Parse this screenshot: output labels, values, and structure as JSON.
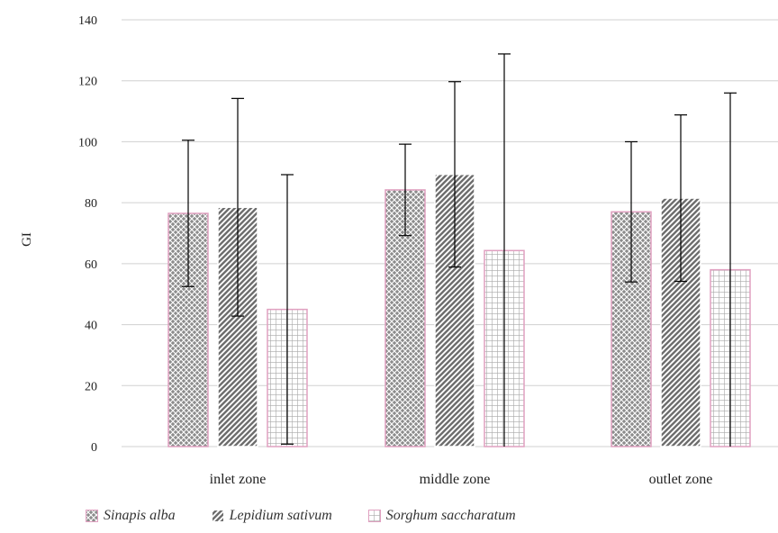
{
  "chart_data": {
    "type": "bar",
    "ylabel": "GI",
    "xlabel": "",
    "ylim": [
      0,
      140
    ],
    "yticks": [
      0,
      20,
      40,
      60,
      80,
      100,
      120,
      140
    ],
    "grid": true,
    "legend_position": "bottom",
    "categories": [
      "inlet zone",
      "middle zone",
      "outlet zone"
    ],
    "series": [
      {
        "name": "Sinapis alba",
        "pattern": "crosshatch",
        "values": [
          76.5,
          84.2,
          77.0
        ],
        "error": [
          24.0,
          15.0,
          23.0
        ]
      },
      {
        "name": "Lepidium sativum",
        "pattern": "diagonal",
        "values": [
          78.5,
          89.3,
          81.5
        ],
        "error": [
          35.7,
          30.4,
          27.3
        ]
      },
      {
        "name": "Sorghum saccharatum",
        "pattern": "grid",
        "values": [
          45.0,
          64.3,
          58.0
        ],
        "error": [
          44.2,
          64.5,
          58.0
        ]
      }
    ]
  },
  "colors": {
    "bar_fill": "#8c8c8c",
    "bar_outline": "#e0a0c0",
    "grid_line": "#d0d0d0",
    "error_bar": "#000000",
    "grid_pattern_line": "#a8a8a8"
  }
}
